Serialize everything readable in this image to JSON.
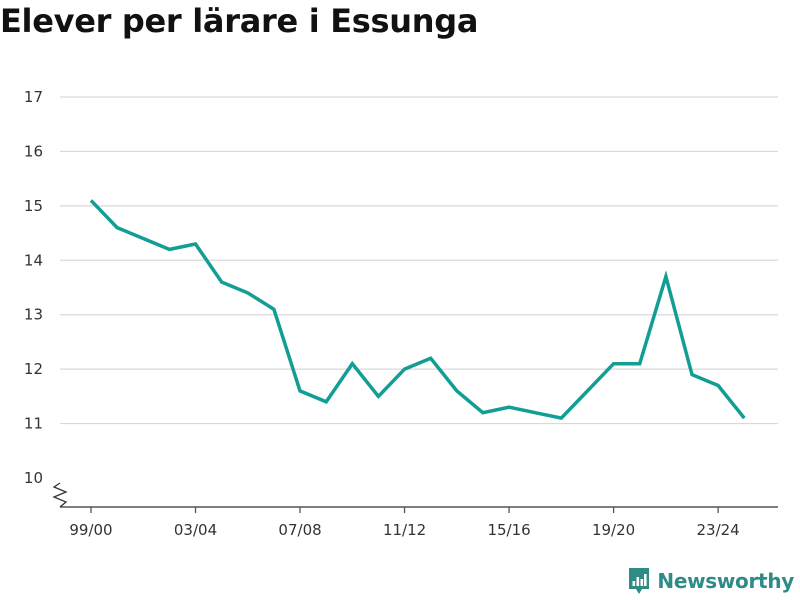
{
  "chart_data": {
    "type": "line",
    "title": "Elever per lärare i Essunga",
    "xlabel": "",
    "ylabel": "",
    "ylim": [
      10,
      17
    ],
    "y_ticks": [
      10,
      11,
      12,
      13,
      14,
      15,
      16,
      17
    ],
    "x_tick_labels": [
      "99/00",
      "03/04",
      "07/08",
      "11/12",
      "15/16",
      "19/20",
      "23/24"
    ],
    "y_axis_break": true,
    "grid": true,
    "line_color": "#139e95",
    "categories": [
      "99/00",
      "00/01",
      "01/02",
      "02/03",
      "03/04",
      "04/05",
      "05/06",
      "06/07",
      "07/08",
      "08/09",
      "09/10",
      "10/11",
      "11/12",
      "12/13",
      "13/14",
      "14/15",
      "15/16",
      "16/17",
      "17/18",
      "18/19",
      "19/20",
      "20/21",
      "21/22",
      "22/23",
      "23/24",
      "24/25"
    ],
    "series": [
      {
        "values": [
          15.1,
          14.6,
          14.4,
          14.2,
          14.3,
          13.6,
          13.4,
          13.1,
          11.6,
          11.4,
          12.1,
          11.5,
          12.0,
          12.2,
          11.6,
          11.2,
          11.3,
          11.2,
          11.1,
          11.6,
          12.1,
          12.1,
          13.7,
          11.9,
          11.7,
          11.1
        ]
      }
    ]
  },
  "branding": {
    "name": "Newsworthy",
    "color": "#2e8b86"
  }
}
